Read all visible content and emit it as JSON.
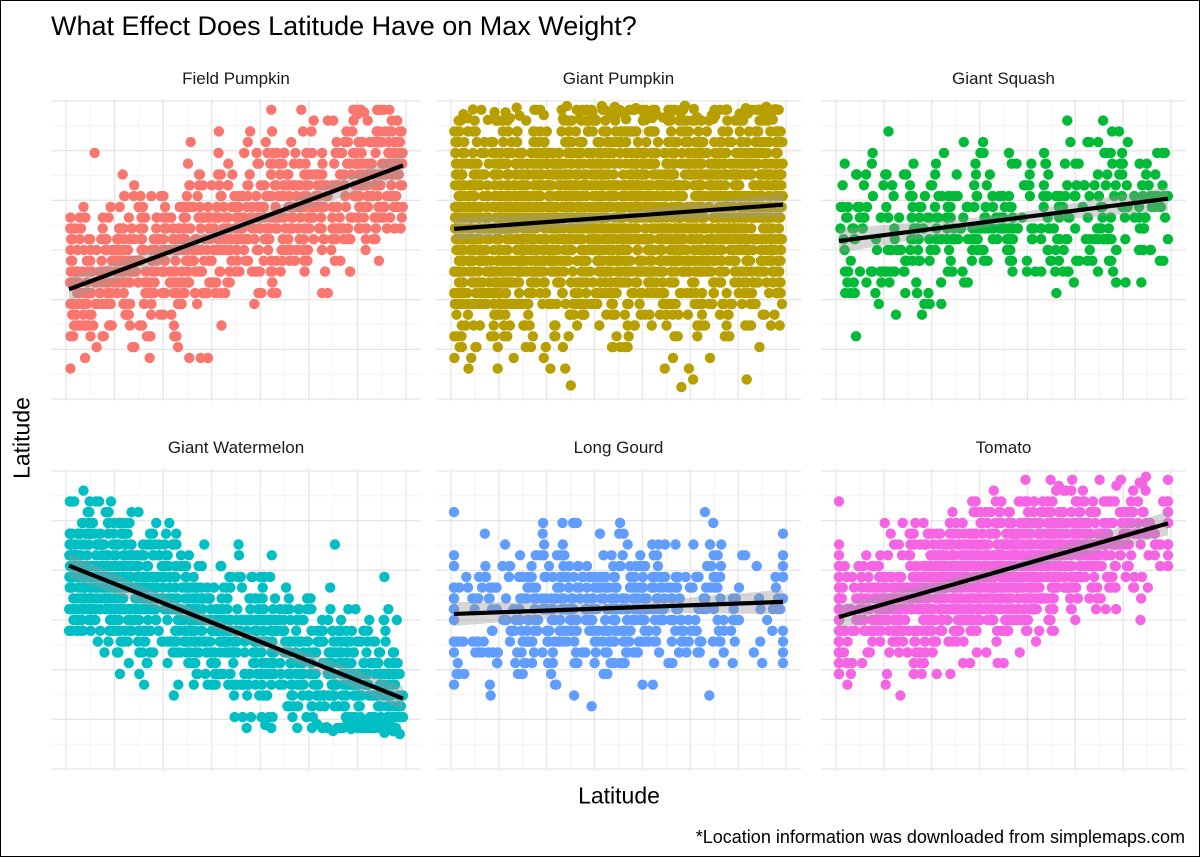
{
  "chart_data": {
    "type": "scatter",
    "title": "What Effect Does Latitude Have on Max Weight?",
    "xlabel": "Latitude",
    "ylabel": "Latitude",
    "caption": "*Location information was downloaded from simplemaps.com",
    "layout": "facet-grid 2x3",
    "axis_tick_labels_shown": false,
    "grid": true,
    "legend": "none",
    "trend": "linear fit with confidence band",
    "panels": [
      {
        "name": "Field Pumpkin",
        "color": "#F8766D",
        "n_points": 900,
        "fit_start": [
          0.0,
          0.37
        ],
        "fit_end": [
          1.0,
          0.78
        ],
        "spread": 0.22,
        "y_range": [
          0.03,
          0.97
        ]
      },
      {
        "name": "Giant Pumpkin",
        "color": "#B79F00",
        "n_points": 2600,
        "fit_start": [
          0.0,
          0.57
        ],
        "fit_end": [
          1.0,
          0.65
        ],
        "spread": 0.33,
        "y_range": [
          0.04,
          0.98
        ]
      },
      {
        "name": "Giant Squash",
        "color": "#00BA38",
        "n_points": 420,
        "fit_start": [
          0.0,
          0.53
        ],
        "fit_end": [
          1.0,
          0.67
        ],
        "spread": 0.22,
        "y_range": [
          0.03,
          0.97
        ]
      },
      {
        "name": "Giant Watermelon",
        "color": "#00BFC4",
        "n_points": 1300,
        "fit_start": [
          0.0,
          0.68
        ],
        "fit_end": [
          1.0,
          0.24
        ],
        "spread": 0.2,
        "y_range": [
          0.12,
          0.98
        ]
      },
      {
        "name": "Long Gourd",
        "color": "#619CFF",
        "n_points": 560,
        "fit_start": [
          0.0,
          0.52
        ],
        "fit_end": [
          1.0,
          0.56
        ],
        "spread": 0.2,
        "y_range": [
          0.03,
          0.97
        ]
      },
      {
        "name": "Tomato",
        "color": "#F564E3",
        "n_points": 1400,
        "fit_start": [
          0.0,
          0.51
        ],
        "fit_end": [
          1.0,
          0.82
        ],
        "spread": 0.19,
        "y_range": [
          0.14,
          0.98
        ]
      }
    ]
  }
}
